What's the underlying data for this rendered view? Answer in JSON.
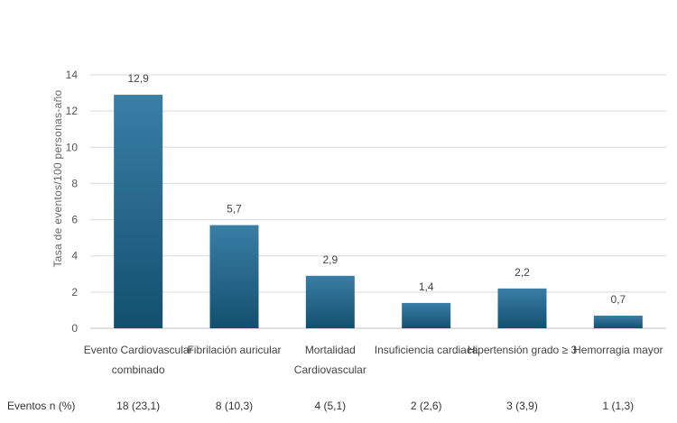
{
  "chart_data": {
    "type": "bar",
    "ylabel": "Tasa de eventos/100 personas-año",
    "ylim": [
      0,
      14
    ],
    "yticks": [
      0,
      2,
      4,
      6,
      8,
      10,
      12,
      14
    ],
    "grid": true,
    "bar_color": "#1f5f86",
    "categories": [
      [
        "Evento Cardiovascular",
        "combinado"
      ],
      [
        "Fibrilación auricular"
      ],
      [
        "Mortalidad",
        "Cardiovascular"
      ],
      [
        "Insuficiencia cardiaca"
      ],
      [
        "Hipertensión grado ≥ 3"
      ],
      [
        "Hemorragia mayor"
      ]
    ],
    "values": [
      12.9,
      5.7,
      2.9,
      1.4,
      2.2,
      0.7
    ],
    "value_labels": [
      "12,9",
      "5,7",
      "2,9",
      "1,4",
      "2,2",
      "0,7"
    ],
    "events_row_label": "Eventos n (%)",
    "events": [
      "18 (23,1)",
      "8 (10,3)",
      "4 (5,1)",
      "2 (2,6)",
      "3  (3,9)",
      "1  (1,3)"
    ]
  }
}
